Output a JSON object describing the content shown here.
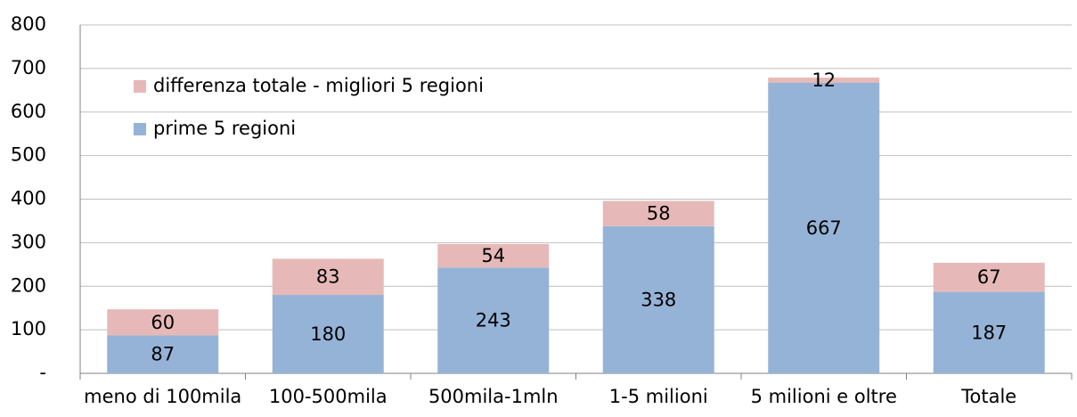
{
  "chart_data": {
    "type": "stacked_bar",
    "categories": [
      "meno di 100mila",
      "100-500mila",
      "500mila-1mln",
      "1-5 milioni",
      "5 milioni e oltre",
      "Totale"
    ],
    "series": [
      {
        "name": "prime 5 regioni",
        "color": "#95b3d7",
        "values": [
          87,
          180,
          243,
          338,
          667,
          187
        ]
      },
      {
        "name": "differenza totale - migliori 5 regioni",
        "color": "#e6b9b8",
        "values": [
          60,
          83,
          54,
          58,
          12,
          67
        ]
      }
    ],
    "ylim": [
      0,
      800
    ],
    "yticks": [
      {
        "value": 0,
        "label": "-"
      },
      100,
      200,
      300,
      400,
      500,
      600,
      700,
      800
    ],
    "grid": true,
    "legend": "upper left"
  }
}
